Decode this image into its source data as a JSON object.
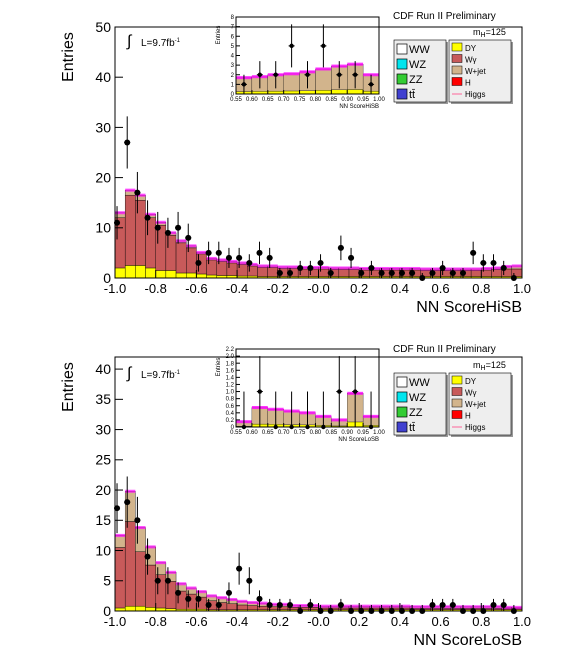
{
  "header": {
    "experiment": "CDF Run II Preliminary",
    "mass_label": "m",
    "mass_sub": "H",
    "mass_value": "=125",
    "lumi_prefix": "L=9.7fb",
    "lumi_sup": "-1",
    "integral_symbol": "∫"
  },
  "legend": {
    "left": [
      {
        "label": "WW",
        "color": "#ffffff"
      },
      {
        "label": "WZ",
        "color": "#00e5ee"
      },
      {
        "label": "ZZ",
        "color": "#33cc33"
      },
      {
        "label": "tt̄",
        "color": "#4040d0"
      }
    ],
    "right": [
      {
        "label": "DY",
        "color": "#ffff00"
      },
      {
        "label": "Wγ",
        "color": "#c85a5a"
      },
      {
        "label": "W+jet",
        "color": "#d2b48c"
      },
      {
        "label": "H",
        "color": "#ff0000"
      },
      {
        "label": "Higgs",
        "color": "#ff6699",
        "line": true
      }
    ]
  },
  "colors": {
    "wgamma": "#c85a5a",
    "wjet": "#d2b48c",
    "dy": "#ffff00",
    "ww": "#ffffff",
    "wz": "#00e5ee",
    "zz": "#33cc33",
    "ttbar": "#4040d0",
    "higgs_band": "#ff00ff",
    "data": "#000000"
  },
  "chart_data": [
    {
      "type": "bar",
      "panel": "top-main",
      "xlabel": "NN ScoreHiSB",
      "ylabel": "Entries",
      "xlim": [
        -1.0,
        1.0
      ],
      "ylim": [
        0,
        50
      ],
      "x_ticks": [
        "-1.0",
        "-0.8",
        "-0.6",
        "-0.4",
        "-0.2",
        "-0.0",
        "0.2",
        "0.4",
        "0.6",
        "0.8",
        "1.0"
      ],
      "y_ticks": [
        "0",
        "10",
        "20",
        "30",
        "40",
        "50"
      ],
      "bin_edges_start": -1.0,
      "bin_width": 0.05,
      "stack": {
        "dy": [
          2,
          2.5,
          2.5,
          2,
          1.5,
          1.5,
          1,
          1,
          0.8,
          0.6,
          0.5,
          0.5,
          0.4,
          0.4,
          0.3,
          0.3,
          0.3,
          0.3,
          0.3,
          0.3,
          0.3,
          0.3,
          0.3,
          0.3,
          0.3,
          0.3,
          0.3,
          0.3,
          0.3,
          0.3,
          0.3,
          0.3,
          0.3,
          0.3,
          0.3,
          0.3,
          0.3,
          0.3,
          0.3,
          0.3
        ],
        "wgamma": [
          10,
          14,
          13,
          10,
          9,
          7,
          6,
          5,
          4,
          3,
          2.8,
          2.5,
          2.3,
          2,
          1.8,
          1.8,
          1.6,
          1.6,
          1.5,
          1.5,
          1.5,
          1.4,
          1.4,
          1.4,
          1.3,
          1.3,
          1.3,
          1.3,
          1.3,
          1.3,
          1.2,
          1.2,
          1.2,
          1.2,
          1.2,
          1.2,
          1.3,
          1.4,
          1.5,
          1.5
        ],
        "wjet": [
          1,
          1,
          1,
          0.7,
          0.6,
          0.5,
          0.4,
          0.4,
          0.3,
          0.3,
          0.3,
          0.3,
          0.3,
          0.3,
          0.3,
          0.3,
          0.3,
          0.3,
          0.3,
          0.3,
          0.3,
          0.3,
          0.3,
          0.3,
          0.3,
          0.3,
          0.3,
          0.3,
          0.3,
          0.3,
          0.3,
          0.3,
          0.3,
          0.3,
          0.3,
          0.3,
          0.3,
          0.3,
          0.5,
          0.6
        ]
      },
      "data_x": [
        -0.99,
        -0.94,
        -0.89,
        -0.84,
        -0.79,
        -0.74,
        -0.69,
        -0.64,
        -0.59,
        -0.54,
        -0.49,
        -0.44,
        -0.39,
        -0.34,
        -0.29,
        -0.24,
        -0.19,
        -0.14,
        -0.09,
        -0.04,
        0.01,
        0.06,
        0.11,
        0.16,
        0.21,
        0.26,
        0.31,
        0.36,
        0.41,
        0.46,
        0.51,
        0.56,
        0.61,
        0.66,
        0.71,
        0.76,
        0.81,
        0.86,
        0.91,
        0.96
      ],
      "data_y": [
        11,
        27,
        17,
        12,
        10,
        9,
        10,
        8,
        3,
        5,
        5,
        4,
        4,
        3,
        5,
        4,
        1,
        1,
        2,
        2,
        3,
        1,
        6,
        4,
        1,
        2,
        1,
        1,
        1,
        1,
        0,
        1,
        2,
        1,
        1,
        5,
        3,
        3,
        2,
        0
      ],
      "higgs_band": "magenta overlay along top of stack"
    },
    {
      "type": "bar",
      "panel": "top-inset",
      "xlabel": "NN ScoreHiSB",
      "ylabel": "Entries",
      "xlim": [
        0.55,
        1.0
      ],
      "ylim": [
        0,
        8
      ],
      "x_ticks": [
        "0.55",
        "0.60",
        "0.65",
        "0.70",
        "0.75",
        "0.80",
        "0.85",
        "0.90",
        "0.95",
        "1.00"
      ],
      "y_ticks": [
        "0",
        "1",
        "2",
        "3",
        "4",
        "5",
        "6",
        "7",
        "8"
      ],
      "bin_width": 0.05,
      "stack_total": [
        1.7,
        1.8,
        2.0,
        2.1,
        2.3,
        2.6,
        2.9,
        3.1,
        2.0
      ],
      "data_x": [
        0.575,
        0.625,
        0.675,
        0.725,
        0.775,
        0.825,
        0.875,
        0.925,
        0.975
      ],
      "data_y": [
        1,
        2,
        2,
        5,
        2,
        5,
        2,
        2,
        1
      ]
    },
    {
      "type": "bar",
      "panel": "bottom-main",
      "xlabel": "NN ScoreLoSB",
      "ylabel": "Entries",
      "xlim": [
        -1.0,
        1.0
      ],
      "ylim": [
        0,
        42
      ],
      "x_ticks": [
        "-1.0",
        "-0.8",
        "-0.6",
        "-0.4",
        "-0.2",
        "-0.0",
        "0.2",
        "0.4",
        "0.6",
        "0.8",
        "1.0"
      ],
      "y_ticks": [
        "0",
        "5",
        "10",
        "15",
        "20",
        "25",
        "30",
        "35",
        "40"
      ],
      "bin_width": 0.05,
      "stack": {
        "dy": [
          0.5,
          0.8,
          0.8,
          0.6,
          0.5,
          0.4,
          0.3,
          0.3,
          0.3,
          0.2,
          0.2,
          0.2,
          0.2,
          0.2,
          0.2,
          0.2,
          0.2,
          0.2,
          0.2,
          0.2,
          0.2,
          0.2,
          0.2,
          0.2,
          0.2,
          0.2,
          0.2,
          0.2,
          0.2,
          0.2,
          0.2,
          0.2,
          0.2,
          0.2,
          0.2,
          0.2,
          0.2,
          0.2,
          0.2,
          0.2
        ],
        "wgamma": [
          10,
          14,
          9,
          7,
          5.5,
          4.5,
          3,
          2.5,
          2,
          1.5,
          1.2,
          1,
          0.8,
          0.7,
          0.6,
          0.5,
          0.5,
          0.4,
          0.4,
          0.4,
          0.3,
          0.3,
          0.3,
          0.3,
          0.3,
          0.3,
          0.3,
          0.3,
          0.3,
          0.2,
          0.2,
          0.2,
          0.2,
          0.2,
          0.2,
          0.2,
          0.2,
          0.2,
          0.2,
          0.2
        ],
        "wjet": [
          2,
          5,
          4,
          3,
          2,
          1.5,
          1.2,
          1,
          0.9,
          0.8,
          0.8,
          0.7,
          0.6,
          0.5,
          0.5,
          0.4,
          0.4,
          0.3,
          0.3,
          0.3,
          0.3,
          0.3,
          0.3,
          0.3,
          0.3,
          0.3,
          0.3,
          0.3,
          0.3,
          0.3,
          0.3,
          0.3,
          0.3,
          0.3,
          0.3,
          0.3,
          0.3,
          0.3,
          0.2,
          0.2
        ]
      },
      "data_x": [
        -0.99,
        -0.94,
        -0.89,
        -0.84,
        -0.79,
        -0.74,
        -0.69,
        -0.64,
        -0.59,
        -0.54,
        -0.49,
        -0.44,
        -0.39,
        -0.34,
        -0.29,
        -0.24,
        -0.19,
        -0.14,
        -0.09,
        -0.04,
        0.01,
        0.06,
        0.11,
        0.16,
        0.21,
        0.26,
        0.31,
        0.36,
        0.41,
        0.46,
        0.51,
        0.56,
        0.61,
        0.66,
        0.71,
        0.76,
        0.81,
        0.86,
        0.91,
        0.96
      ],
      "data_y": [
        17,
        18,
        15,
        9,
        5,
        5,
        3,
        2,
        2,
        1,
        1,
        3,
        7,
        5,
        2,
        1,
        1,
        1,
        0,
        1,
        0,
        0,
        1,
        0,
        0,
        0,
        0,
        0,
        0,
        0,
        0,
        1,
        1,
        1,
        0,
        0,
        0,
        1,
        1,
        0
      ],
      "higgs_band": "magenta overlay along top of stack"
    },
    {
      "type": "bar",
      "panel": "bottom-inset",
      "xlabel": "NN ScoreLoSB",
      "ylabel": "Entries",
      "xlim": [
        0.55,
        1.0
      ],
      "ylim": [
        0,
        2.2
      ],
      "x_ticks": [
        "0.55",
        "0.60",
        "0.65",
        "0.70",
        "0.75",
        "0.80",
        "0.85",
        "0.90",
        "0.95",
        "1.00"
      ],
      "y_ticks": [
        "0",
        "0.2",
        "0.4",
        "0.6",
        "0.8",
        "1.0",
        "1.2",
        "1.4",
        "1.6",
        "1.8",
        "2.0",
        "2.2"
      ],
      "bin_width": 0.05,
      "stack_total": [
        0.15,
        0.55,
        0.5,
        0.45,
        0.4,
        0.3,
        0.2,
        0.95,
        0.3
      ],
      "data_x": [
        0.575,
        0.625,
        0.675,
        0.725,
        0.775,
        0.825,
        0.875,
        0.925,
        0.975
      ],
      "data_y": [
        0,
        1,
        0,
        0,
        0,
        0,
        1,
        1,
        0
      ]
    }
  ]
}
